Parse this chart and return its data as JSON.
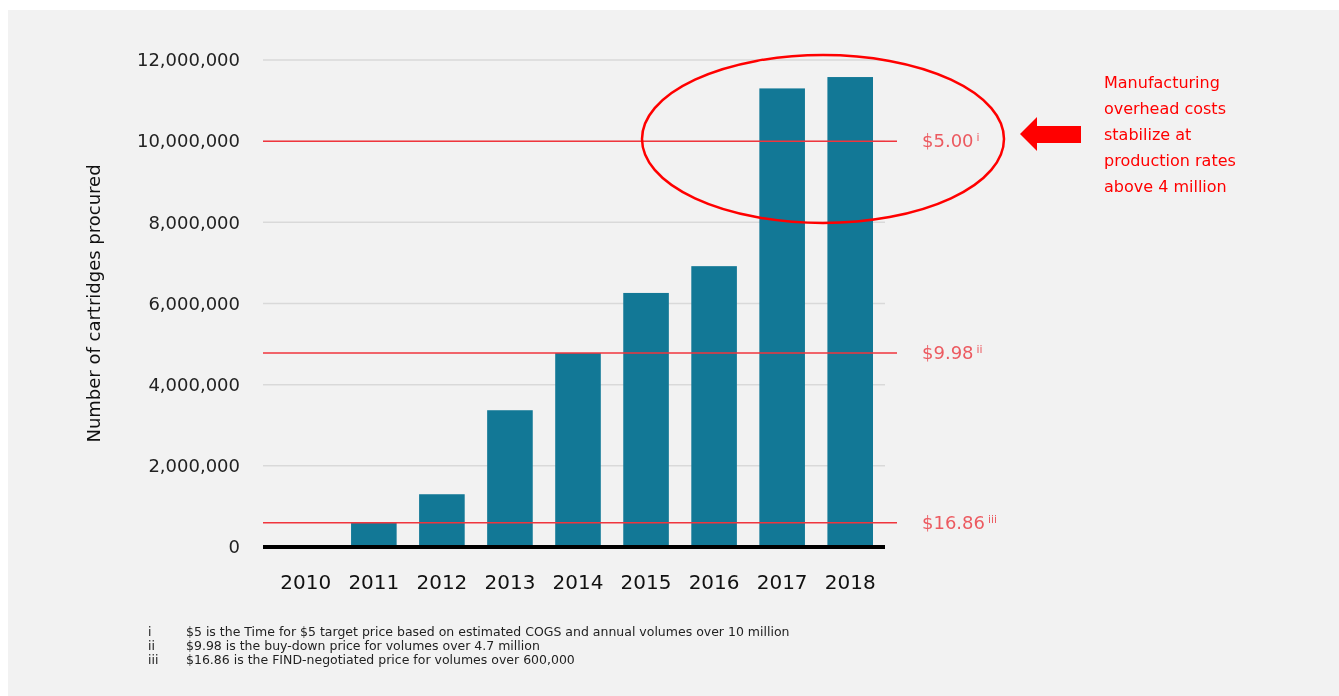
{
  "chart_data": {
    "type": "bar",
    "ylabel": "Number of cartridges procured",
    "categories": [
      "2010",
      "2011",
      "2012",
      "2013",
      "2014",
      "2015",
      "2016",
      "2017",
      "2018"
    ],
    "values": [
      0,
      600000,
      1300000,
      3370000,
      4780000,
      6260000,
      6920000,
      11300000,
      11580000
    ],
    "color": "#127896",
    "ylim": [
      0,
      12000000
    ],
    "yticks": [
      {
        "value": 0,
        "label": "0"
      },
      {
        "value": 2000000,
        "label": "2,000,000"
      },
      {
        "value": 4000000,
        "label": "4,000,000"
      },
      {
        "value": 6000000,
        "label": "6,000,000"
      },
      {
        "value": 8000000,
        "label": "8,000,000"
      },
      {
        "value": 10000000,
        "label": "10,000,000"
      },
      {
        "value": 12000000,
        "label": "12,000,000"
      }
    ],
    "grid": "y",
    "ref_lines": [
      {
        "axis": "y",
        "value": 10000000,
        "label": "$5.00$^{i}$",
        "color": "#f0353d"
      },
      {
        "axis": "y",
        "value": 4780000,
        "label": "$9.98$^{ii}$",
        "color": "#f0353d"
      },
      {
        "axis": "y",
        "value": 600000,
        "label": "$16.86$^{iii}$",
        "color": "#f0353d"
      }
    ],
    "annotations": [
      "Manufacturing\noverhead costs\nstabilize at\nproduction rates\nabove 4 million",
      "i $5 is the Time for $5 target price based on estimated COGS and annual volumes over 10 million",
      "ii $9.98 is the buy-down price for volumes over 4.7 million",
      "iii $16.86 is the FIND-negotiated price for volumes over 600,000"
    ]
  }
}
